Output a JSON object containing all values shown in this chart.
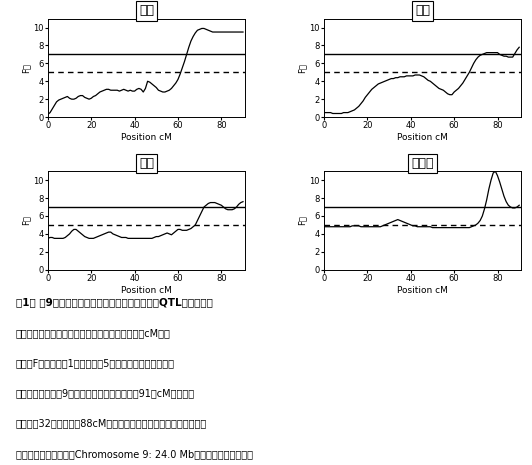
{
  "titles": [
    "卵重",
    "長径",
    "短径",
    "卵殼重"
  ],
  "xlabel": "Position cM",
  "ylim": [
    0,
    11
  ],
  "xlim": [
    0,
    91
  ],
  "xticks": [
    0,
    20,
    40,
    60,
    80
  ],
  "yticks": [
    0,
    2,
    4,
    6,
    8,
    10
  ],
  "threshold_1pct": 7.0,
  "threshold_5pct": 5.0,
  "bg_color": "#ffffff",
  "line_color": "#000000",
  "curves": {
    "卵重": {
      "x": [
        0,
        1,
        2,
        3,
        4,
        5,
        6,
        7,
        8,
        9,
        10,
        11,
        12,
        13,
        14,
        15,
        16,
        17,
        18,
        19,
        20,
        21,
        22,
        23,
        24,
        25,
        26,
        27,
        28,
        29,
        30,
        31,
        32,
        33,
        34,
        35,
        36,
        37,
        38,
        39,
        40,
        41,
        42,
        43,
        44,
        45,
        46,
        47,
        48,
        49,
        50,
        51,
        52,
        53,
        54,
        55,
        56,
        57,
        58,
        59,
        60,
        61,
        62,
        63,
        64,
        65,
        66,
        67,
        68,
        69,
        70,
        71,
        72,
        73,
        74,
        75,
        76,
        77,
        78,
        79,
        80,
        81,
        82,
        83,
        84,
        85,
        86,
        87,
        88,
        89,
        90
      ],
      "y": [
        0.3,
        0.5,
        0.9,
        1.3,
        1.7,
        1.9,
        2.0,
        2.1,
        2.2,
        2.3,
        2.1,
        2.0,
        2.0,
        2.1,
        2.3,
        2.4,
        2.4,
        2.2,
        2.1,
        2.0,
        2.1,
        2.3,
        2.4,
        2.6,
        2.8,
        2.9,
        3.0,
        3.1,
        3.1,
        3.0,
        3.0,
        3.0,
        3.0,
        2.9,
        3.0,
        3.1,
        3.0,
        2.9,
        3.0,
        2.9,
        2.9,
        3.1,
        3.2,
        3.1,
        2.8,
        3.2,
        4.0,
        3.9,
        3.7,
        3.5,
        3.3,
        3.0,
        2.9,
        2.8,
        2.8,
        2.9,
        3.0,
        3.2,
        3.5,
        3.8,
        4.2,
        4.8,
        5.5,
        6.2,
        7.0,
        7.8,
        8.5,
        9.0,
        9.4,
        9.7,
        9.8,
        9.9,
        9.9,
        9.8,
        9.7,
        9.6,
        9.5,
        9.5,
        9.5,
        9.5,
        9.5,
        9.5,
        9.5,
        9.5,
        9.5,
        9.5,
        9.5,
        9.5,
        9.5,
        9.5,
        9.5
      ]
    },
    "長径": {
      "x": [
        0,
        1,
        2,
        3,
        4,
        5,
        6,
        7,
        8,
        9,
        10,
        11,
        12,
        13,
        14,
        15,
        16,
        17,
        18,
        19,
        20,
        21,
        22,
        23,
        24,
        25,
        26,
        27,
        28,
        29,
        30,
        31,
        32,
        33,
        34,
        35,
        36,
        37,
        38,
        39,
        40,
        41,
        42,
        43,
        44,
        45,
        46,
        47,
        48,
        49,
        50,
        51,
        52,
        53,
        54,
        55,
        56,
        57,
        58,
        59,
        60,
        61,
        62,
        63,
        64,
        65,
        66,
        67,
        68,
        69,
        70,
        71,
        72,
        73,
        74,
        75,
        76,
        77,
        78,
        79,
        80,
        81,
        82,
        83,
        84,
        85,
        86,
        87,
        88,
        89,
        90
      ],
      "y": [
        0.5,
        0.5,
        0.5,
        0.5,
        0.4,
        0.4,
        0.4,
        0.4,
        0.4,
        0.5,
        0.5,
        0.5,
        0.6,
        0.7,
        0.8,
        1.0,
        1.2,
        1.5,
        1.8,
        2.2,
        2.5,
        2.8,
        3.1,
        3.3,
        3.5,
        3.7,
        3.8,
        3.9,
        4.0,
        4.1,
        4.2,
        4.3,
        4.3,
        4.4,
        4.4,
        4.5,
        4.5,
        4.5,
        4.6,
        4.6,
        4.6,
        4.6,
        4.7,
        4.7,
        4.7,
        4.6,
        4.5,
        4.3,
        4.1,
        4.0,
        3.8,
        3.6,
        3.4,
        3.2,
        3.1,
        3.0,
        2.8,
        2.6,
        2.5,
        2.5,
        2.8,
        3.0,
        3.2,
        3.5,
        3.8,
        4.2,
        4.6,
        5.0,
        5.5,
        6.0,
        6.4,
        6.7,
        6.9,
        7.0,
        7.1,
        7.2,
        7.2,
        7.2,
        7.2,
        7.2,
        7.2,
        7.0,
        6.9,
        6.8,
        6.8,
        6.7,
        6.7,
        6.7,
        7.1,
        7.5,
        7.8
      ]
    },
    "短径": {
      "x": [
        0,
        1,
        2,
        3,
        4,
        5,
        6,
        7,
        8,
        9,
        10,
        11,
        12,
        13,
        14,
        15,
        16,
        17,
        18,
        19,
        20,
        21,
        22,
        23,
        24,
        25,
        26,
        27,
        28,
        29,
        30,
        31,
        32,
        33,
        34,
        35,
        36,
        37,
        38,
        39,
        40,
        41,
        42,
        43,
        44,
        45,
        46,
        47,
        48,
        49,
        50,
        51,
        52,
        53,
        54,
        55,
        56,
        57,
        58,
        59,
        60,
        61,
        62,
        63,
        64,
        65,
        66,
        67,
        68,
        69,
        70,
        71,
        72,
        73,
        74,
        75,
        76,
        77,
        78,
        79,
        80,
        81,
        82,
        83,
        84,
        85,
        86,
        87,
        88,
        89,
        90
      ],
      "y": [
        3.5,
        3.6,
        3.6,
        3.5,
        3.5,
        3.5,
        3.5,
        3.5,
        3.6,
        3.8,
        4.0,
        4.3,
        4.5,
        4.5,
        4.3,
        4.1,
        3.9,
        3.7,
        3.6,
        3.5,
        3.5,
        3.5,
        3.6,
        3.7,
        3.8,
        3.9,
        4.0,
        4.1,
        4.2,
        4.2,
        4.0,
        3.9,
        3.8,
        3.7,
        3.6,
        3.6,
        3.6,
        3.5,
        3.5,
        3.5,
        3.5,
        3.5,
        3.5,
        3.5,
        3.5,
        3.5,
        3.5,
        3.5,
        3.5,
        3.6,
        3.7,
        3.7,
        3.8,
        3.9,
        4.0,
        4.1,
        4.0,
        3.9,
        4.1,
        4.3,
        4.5,
        4.5,
        4.4,
        4.4,
        4.4,
        4.5,
        4.6,
        4.8,
        5.0,
        5.5,
        6.0,
        6.5,
        7.0,
        7.2,
        7.4,
        7.5,
        7.5,
        7.5,
        7.4,
        7.3,
        7.2,
        7.0,
        6.8,
        6.7,
        6.7,
        6.7,
        6.8,
        7.0,
        7.3,
        7.5,
        7.6
      ]
    },
    "卵殼重": {
      "x": [
        0,
        1,
        2,
        3,
        4,
        5,
        6,
        7,
        8,
        9,
        10,
        11,
        12,
        13,
        14,
        15,
        16,
        17,
        18,
        19,
        20,
        21,
        22,
        23,
        24,
        25,
        26,
        27,
        28,
        29,
        30,
        31,
        32,
        33,
        34,
        35,
        36,
        37,
        38,
        39,
        40,
        41,
        42,
        43,
        44,
        45,
        46,
        47,
        48,
        49,
        50,
        51,
        52,
        53,
        54,
        55,
        56,
        57,
        58,
        59,
        60,
        61,
        62,
        63,
        64,
        65,
        66,
        67,
        68,
        69,
        70,
        71,
        72,
        73,
        74,
        75,
        76,
        77,
        78,
        79,
        80,
        81,
        82,
        83,
        84,
        85,
        86,
        87,
        88,
        89,
        90
      ],
      "y": [
        4.8,
        4.8,
        4.8,
        4.8,
        4.8,
        4.8,
        4.8,
        4.8,
        4.8,
        4.8,
        4.8,
        4.8,
        4.8,
        4.9,
        4.9,
        4.9,
        4.9,
        4.8,
        4.8,
        4.8,
        4.8,
        4.8,
        4.8,
        4.8,
        4.8,
        4.8,
        4.8,
        4.9,
        5.0,
        5.1,
        5.2,
        5.3,
        5.4,
        5.5,
        5.6,
        5.5,
        5.4,
        5.3,
        5.2,
        5.1,
        5.0,
        4.9,
        4.9,
        4.8,
        4.8,
        4.8,
        4.8,
        4.8,
        4.8,
        4.8,
        4.7,
        4.7,
        4.7,
        4.7,
        4.7,
        4.7,
        4.7,
        4.7,
        4.7,
        4.7,
        4.7,
        4.7,
        4.7,
        4.7,
        4.7,
        4.7,
        4.7,
        4.7,
        4.8,
        4.9,
        5.0,
        5.2,
        5.5,
        6.0,
        6.8,
        7.8,
        9.0,
        10.0,
        10.8,
        11.0,
        10.5,
        9.8,
        9.0,
        8.2,
        7.6,
        7.2,
        7.0,
        6.9,
        6.9,
        7.0,
        7.2
      ]
    }
  },
  "caption_lines": [
    "図1． 第9番染色体における量的形質遣伝子座（QTL）解析結果",
    "横軸は、染色体のポジション（センチモルガン：cM）。",
    "縦軸はF値。実線は1％、点線は5％有意水準を示す閾値。",
    "本研究における第9番染色体連鎖地図の全長は91　cM。オボカ",
    "リキシン32遣伝子は、88cM相当部位に存在。同遣伝子のドラフト",
    "シーケンス上の位置はChromosome 9: 24.0 Mb（メガベースペア）。"
  ]
}
